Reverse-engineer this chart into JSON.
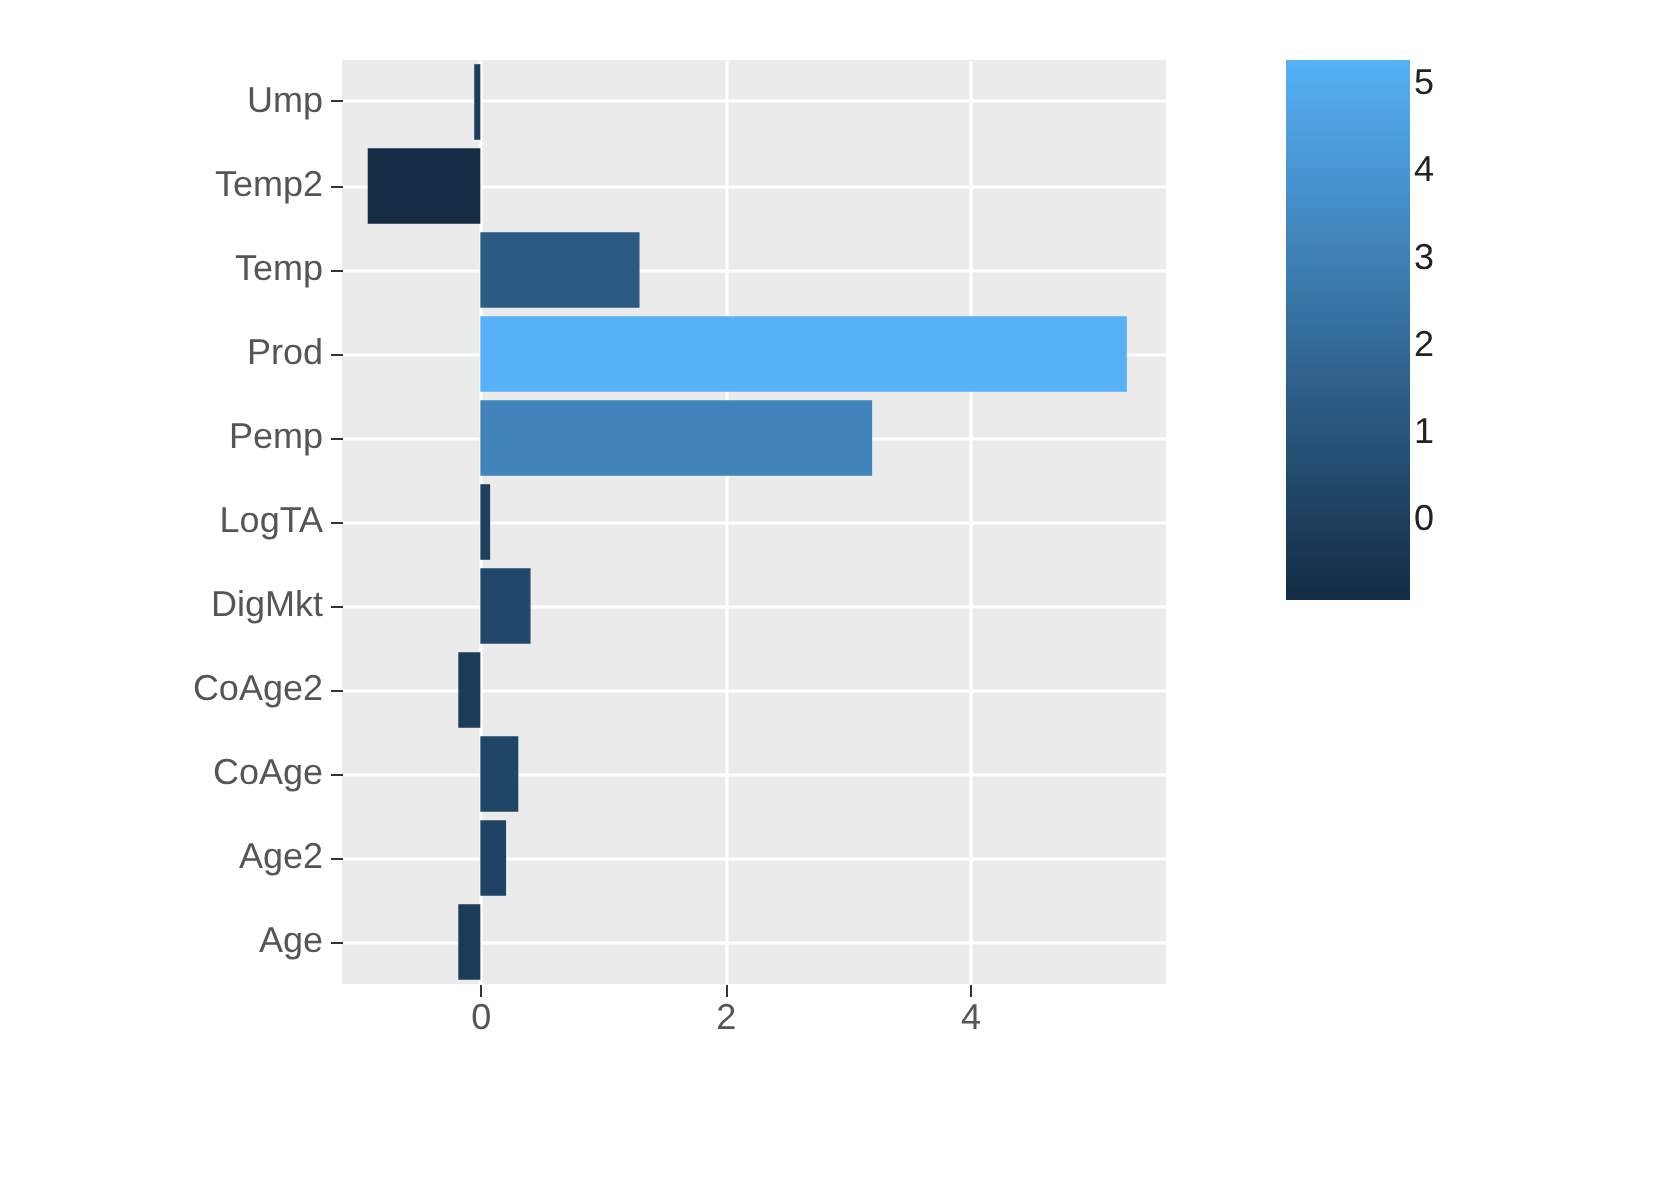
{
  "chart_data": {
    "type": "bar",
    "orientation": "horizontal",
    "categories": [
      "Ump",
      "Temp2",
      "Temp",
      "Prod",
      "Pemp",
      "LogTA",
      "DigMkt",
      "CoAge2",
      "CoAge",
      "Age2",
      "Age"
    ],
    "values": [
      -0.05,
      -0.92,
      1.3,
      5.28,
      3.2,
      0.08,
      0.41,
      -0.18,
      0.31,
      0.21,
      -0.18
    ],
    "cvalues": [
      -0.05,
      -0.92,
      1.3,
      5.28,
      3.2,
      0.08,
      0.41,
      -0.18,
      0.31,
      0.21,
      -0.18
    ],
    "xlim": [
      -1.13,
      5.6
    ],
    "xticks": [
      0,
      2,
      4
    ],
    "clim": [
      -0.92,
      5.28
    ],
    "cticks": [
      0,
      1,
      2,
      3,
      4,
      5
    ],
    "colors": [
      "#1c3e5c",
      "#132b43",
      "#2b5b83",
      "#56b1f7",
      "#4084bb",
      "#1e4160",
      "#21486a",
      "#1b3b58",
      "#204667",
      "#1f4364",
      "#1b3b58"
    ],
    "grid": true
  }
}
